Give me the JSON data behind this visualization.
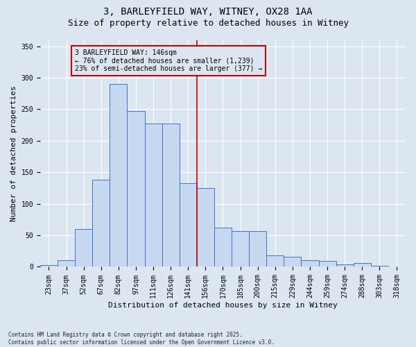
{
  "title1": "3, BARLEYFIELD WAY, WITNEY, OX28 1AA",
  "title2": "Size of property relative to detached houses in Witney",
  "xlabel": "Distribution of detached houses by size in Witney",
  "ylabel": "Number of detached properties",
  "categories": [
    "23sqm",
    "37sqm",
    "52sqm",
    "67sqm",
    "82sqm",
    "97sqm",
    "111sqm",
    "126sqm",
    "141sqm",
    "156sqm",
    "170sqm",
    "185sqm",
    "200sqm",
    "215sqm",
    "229sqm",
    "244sqm",
    "259sqm",
    "274sqm",
    "288sqm",
    "303sqm",
    "318sqm"
  ],
  "values": [
    3,
    10,
    60,
    138,
    290,
    247,
    227,
    227,
    133,
    125,
    62,
    57,
    57,
    18,
    16,
    10,
    9,
    4,
    6,
    2,
    1
  ],
  "bar_color": "#c6d9f0",
  "bar_edge_color": "#4472c4",
  "background_color": "#dce6f1",
  "grid_color": "#ffffff",
  "vline_x": 8.5,
  "vline_color": "#c00000",
  "annotation_text": "3 BARLEYFIELD WAY: 146sqm\n← 76% of detached houses are smaller (1,239)\n23% of semi-detached houses are larger (377) →",
  "annotation_box_color": "#c00000",
  "ylim": [
    0,
    360
  ],
  "yticks": [
    0,
    50,
    100,
    150,
    200,
    250,
    300,
    350
  ],
  "footer": "Contains HM Land Registry data © Crown copyright and database right 2025.\nContains public sector information licensed under the Open Government Licence v3.0.",
  "title_fontsize": 10,
  "subtitle_fontsize": 9,
  "xlabel_fontsize": 8,
  "ylabel_fontsize": 8,
  "tick_fontsize": 7,
  "annotation_fontsize": 7,
  "footer_fontsize": 5.5
}
